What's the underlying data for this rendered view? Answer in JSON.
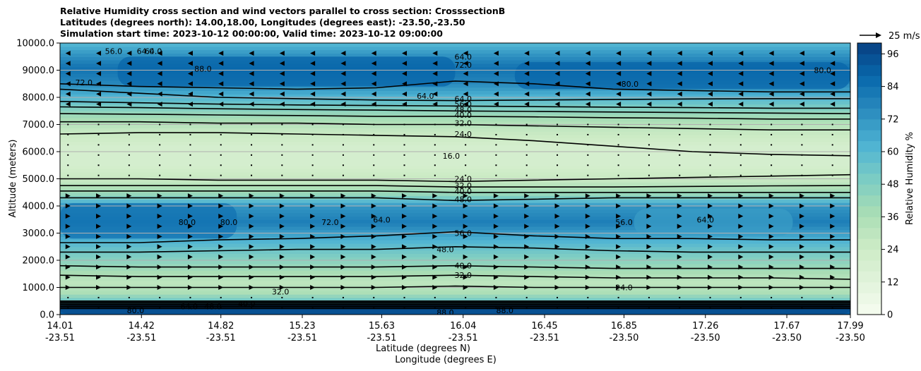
{
  "chart_data": {
    "type": "heatmap",
    "title_lines": [
      "Relative Humidity cross section and wind vectors parallel to cross section: CrosssectionB",
      "Latitudes (degrees north): 14.00,18.00, Longitudes (degrees east): -23.50,-23.50",
      "Simulation start time: 2023-10-12 00:00:00, Valid time: 2023-10-12 09:00:00"
    ],
    "xlabel": "Latitude (degrees N)",
    "xlabel2": "Longitude (degrees E)",
    "ylabel": "Altitude (meters)",
    "xlim": [
      14.01,
      17.99
    ],
    "ylim": [
      0,
      10000
    ],
    "x_ticks": [
      {
        "lat": "14.01",
        "lon": "-23.51"
      },
      {
        "lat": "14.42",
        "lon": "-23.51"
      },
      {
        "lat": "14.82",
        "lon": "-23.51"
      },
      {
        "lat": "15.23",
        "lon": "-23.51"
      },
      {
        "lat": "15.63",
        "lon": "-23.51"
      },
      {
        "lat": "16.04",
        "lon": "-23.51"
      },
      {
        "lat": "16.45",
        "lon": "-23.51"
      },
      {
        "lat": "16.85",
        "lon": "-23.50"
      },
      {
        "lat": "17.26",
        "lon": "-23.50"
      },
      {
        "lat": "17.67",
        "lon": "-23.50"
      },
      {
        "lat": "17.99",
        "lon": "-23.50"
      }
    ],
    "y_ticks": [
      "0.0",
      "1000.0",
      "2000.0",
      "3000.0",
      "4000.0",
      "5000.0",
      "6000.0",
      "7000.0",
      "8000.0",
      "9000.0",
      "10000.0"
    ],
    "grid": "horizontal",
    "colorbar": {
      "label": "Relative Humidity %",
      "ticks": [
        "0",
        "12",
        "24",
        "36",
        "48",
        "60",
        "72",
        "84",
        "96"
      ],
      "range": [
        0,
        100
      ],
      "colormap": "GnBu",
      "colors": [
        "#f7fcf0",
        "#e0f3db",
        "#ccebc5",
        "#a8ddb5",
        "#7bccc4",
        "#4eb3d3",
        "#2b8cbe",
        "#0868ac",
        "#084081"
      ]
    },
    "quiver_key": {
      "label": "25 m/s",
      "speed": 25
    },
    "rh_profile": [
      {
        "alt": 0,
        "rh": 90
      },
      {
        "alt": 150,
        "rh": 92
      },
      {
        "alt": 300,
        "rh": 88
      },
      {
        "alt": 500,
        "rh": 55
      },
      {
        "alt": 800,
        "rh": 36
      },
      {
        "alt": 1200,
        "rh": 30
      },
      {
        "alt": 1700,
        "rh": 40
      },
      {
        "alt": 2300,
        "rh": 52
      },
      {
        "alt": 2800,
        "rh": 64
      },
      {
        "alt": 3400,
        "rh": 80
      },
      {
        "alt": 4000,
        "rh": 72
      },
      {
        "alt": 4400,
        "rh": 44
      },
      {
        "alt": 4900,
        "rh": 28
      },
      {
        "alt": 5500,
        "rh": 20
      },
      {
        "alt": 6200,
        "rh": 20
      },
      {
        "alt": 6800,
        "rh": 28
      },
      {
        "alt": 7400,
        "rh": 42
      },
      {
        "alt": 8100,
        "rh": 64
      },
      {
        "alt": 8600,
        "rh": 78
      },
      {
        "alt": 9100,
        "rh": 84
      },
      {
        "alt": 9600,
        "rh": 72
      },
      {
        "alt": 10000,
        "rh": 60
      }
    ],
    "contour_lines": [
      {
        "level": 24,
        "alts": [
          6650,
          6700,
          6700,
          6650,
          6600,
          6550,
          6400,
          6200,
          6000,
          5900,
          5850
        ]
      },
      {
        "level": 32,
        "alts": [
          7100,
          7100,
          7050,
          7050,
          7000,
          7000,
          6950,
          6900,
          6850,
          6800,
          6800
        ]
      },
      {
        "level": 40,
        "alts": [
          7400,
          7380,
          7350,
          7330,
          7300,
          7300,
          7280,
          7250,
          7230,
          7200,
          7200
        ]
      },
      {
        "level": 48,
        "alts": [
          7650,
          7620,
          7580,
          7550,
          7530,
          7500,
          7480,
          7460,
          7440,
          7420,
          7400
        ]
      },
      {
        "level": 56,
        "alts": [
          7850,
          7800,
          7750,
          7720,
          7700,
          7680,
          7660,
          7640,
          7620,
          7600,
          7600
        ]
      },
      {
        "level": 64,
        "alts": [
          8300,
          8150,
          8000,
          7950,
          7900,
          7880,
          7900,
          7920,
          7940,
          7950,
          7950
        ]
      },
      {
        "level": 72,
        "alts": [
          8500,
          8400,
          8350,
          8300,
          8350,
          8600,
          8500,
          8300,
          8250,
          8200,
          8200
        ]
      },
      {
        "level": 24,
        "alts": [
          5000,
          5000,
          4950,
          4950,
          4950,
          4900,
          4950,
          5000,
          5050,
          5100,
          5150
        ]
      },
      {
        "level": 32,
        "alts": [
          4750,
          4750,
          4750,
          4750,
          4750,
          4700,
          4700,
          4700,
          4720,
          4740,
          4750
        ]
      },
      {
        "level": 40,
        "alts": [
          4550,
          4550,
          4550,
          4550,
          4550,
          4500,
          4500,
          4500,
          4500,
          4500,
          4500
        ]
      },
      {
        "level": 48,
        "alts": [
          4300,
          4300,
          4300,
          4300,
          4300,
          4200,
          4250,
          4300,
          4300,
          4300,
          4300
        ]
      },
      {
        "level": 56,
        "alts": [
          2650,
          2650,
          2750,
          2800,
          2900,
          3050,
          2900,
          2800,
          2800,
          2750,
          2750
        ]
      },
      {
        "level": 48,
        "alts": [
          2300,
          2300,
          2350,
          2400,
          2400,
          2500,
          2450,
          2350,
          2300,
          2300,
          2300
        ]
      },
      {
        "level": 40,
        "alts": [
          1800,
          1750,
          1750,
          1750,
          1750,
          1800,
          1750,
          1700,
          1700,
          1700,
          1700
        ]
      },
      {
        "level": 32,
        "alts": [
          1450,
          1400,
          1400,
          1400,
          1400,
          1450,
          1400,
          1350,
          1350,
          1350,
          1300
        ]
      },
      {
        "level": 24,
        "alts": [
          1000,
          1000,
          1000,
          1000,
          1000,
          1050,
          1000,
          1000,
          1000,
          1000,
          1000
        ]
      }
    ],
    "contour_labels": [
      {
        "text": "88.0",
        "lat": 14.73,
        "alt": 9050
      },
      {
        "text": "72.0",
        "lat": 14.13,
        "alt": 8550
      },
      {
        "text": "64.0",
        "lat": 15.85,
        "alt": 8050
      },
      {
        "text": "64.0",
        "lat": 16.04,
        "alt": 7950
      },
      {
        "text": "56.0",
        "lat": 16.04,
        "alt": 7750
      },
      {
        "text": "48.0",
        "lat": 16.04,
        "alt": 7550
      },
      {
        "text": "40.0",
        "lat": 16.04,
        "alt": 7350
      },
      {
        "text": "32.0",
        "lat": 16.04,
        "alt": 7050
      },
      {
        "text": "24.0",
        "lat": 16.04,
        "alt": 6650
      },
      {
        "text": "16.0",
        "lat": 15.98,
        "alt": 5850
      },
      {
        "text": "24.0",
        "lat": 16.04,
        "alt": 5000
      },
      {
        "text": "32.0",
        "lat": 16.04,
        "alt": 4750
      },
      {
        "text": "40.0",
        "lat": 16.04,
        "alt": 4550
      },
      {
        "text": "48.0",
        "lat": 16.04,
        "alt": 4250
      },
      {
        "text": "80.0",
        "lat": 14.65,
        "alt": 3400
      },
      {
        "text": "56.0",
        "lat": 16.04,
        "alt": 3000
      },
      {
        "text": "48.0",
        "lat": 15.95,
        "alt": 2400
      },
      {
        "text": "40.0",
        "lat": 16.04,
        "alt": 1800
      },
      {
        "text": "32.0",
        "lat": 16.04,
        "alt": 1450
      },
      {
        "text": "32.0",
        "lat": 15.12,
        "alt": 850
      },
      {
        "text": "40.0",
        "lat": 14.95,
        "alt": 400
      },
      {
        "text": "48.0",
        "lat": 14.78,
        "alt": 300
      },
      {
        "text": "64.0",
        "lat": 14.66,
        "alt": 300
      },
      {
        "text": "80.0",
        "lat": 14.39,
        "alt": 150
      },
      {
        "text": "88.0",
        "lat": 15.95,
        "alt": 80
      },
      {
        "text": "88.0",
        "lat": 16.25,
        "alt": 150
      },
      {
        "text": "24.0",
        "lat": 16.85,
        "alt": 1000
      },
      {
        "text": "64.0",
        "lat": 16.04,
        "alt": 9500
      },
      {
        "text": "72.0",
        "lat": 16.04,
        "alt": 9200
      },
      {
        "text": "64.0",
        "lat": 14.44,
        "alt": 9700
      },
      {
        "text": "56.0",
        "lat": 14.28,
        "alt": 9700
      },
      {
        "text": "64.0",
        "lat": 14.48,
        "alt": 9700
      },
      {
        "text": "80.0",
        "lat": 16.88,
        "alt": 8500
      },
      {
        "text": "80.0",
        "lat": 17.85,
        "alt": 9000
      },
      {
        "text": "64.0",
        "lat": 17.26,
        "alt": 3500
      },
      {
        "text": "64.0",
        "lat": 15.63,
        "alt": 3500
      },
      {
        "text": "72.0",
        "lat": 15.37,
        "alt": 3400
      },
      {
        "text": "80.0",
        "lat": 14.86,
        "alt": 3400
      },
      {
        "text": "56.0",
        "lat": 16.85,
        "alt": 3400
      }
    ],
    "wind": {
      "upper_band": {
        "alt_range": [
          7400,
          10000
        ],
        "direction": "left"
      },
      "middle_band": {
        "alt_range": [
          5000,
          7200
        ],
        "direction": "right-weak"
      },
      "lower_band": {
        "alt_range": [
          1000,
          4700
        ],
        "direction": "right"
      },
      "surface_band": {
        "alt_range": [
          0,
          900
        ],
        "direction": "right-weak"
      }
    }
  }
}
